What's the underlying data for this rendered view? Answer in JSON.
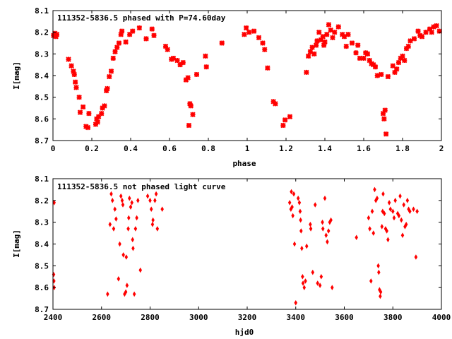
{
  "chart_data": [
    {
      "type": "scatter",
      "title": "111352-5836.5 phased with P=74.60day",
      "xlabel": "phase",
      "ylabel": "I[mag]",
      "xlim": [
        0,
        2
      ],
      "ylim": [
        8.7,
        8.1
      ],
      "y_inverted": true,
      "x_ticks": [
        "0",
        "0.2",
        "0.4",
        "0.6",
        "0.8",
        "1",
        "1.2",
        "1.4",
        "1.6",
        "1.8",
        "2"
      ],
      "y_ticks": [
        "8.1",
        "8.2",
        "8.3",
        "8.4",
        "8.5",
        "8.6",
        "8.7"
      ],
      "marker": "cross",
      "color": "#ff0000",
      "grid": false,
      "points": [
        [
          0.003,
          8.215
        ],
        [
          0.01,
          8.205
        ],
        [
          0.015,
          8.22
        ],
        [
          0.02,
          8.21
        ],
        [
          0.08,
          8.325
        ],
        [
          0.095,
          8.355
        ],
        [
          0.105,
          8.38
        ],
        [
          0.11,
          8.395
        ],
        [
          0.115,
          8.43
        ],
        [
          0.12,
          8.455
        ],
        [
          0.135,
          8.5
        ],
        [
          0.14,
          8.57
        ],
        [
          0.155,
          8.545
        ],
        [
          0.17,
          8.635
        ],
        [
          0.18,
          8.64
        ],
        [
          0.185,
          8.575
        ],
        [
          0.22,
          8.625
        ],
        [
          0.225,
          8.6
        ],
        [
          0.23,
          8.615
        ],
        [
          0.235,
          8.59
        ],
        [
          0.25,
          8.575
        ],
        [
          0.255,
          8.55
        ],
        [
          0.265,
          8.54
        ],
        [
          0.275,
          8.47
        ],
        [
          0.28,
          8.46
        ],
        [
          0.29,
          8.405
        ],
        [
          0.3,
          8.38
        ],
        [
          0.31,
          8.32
        ],
        [
          0.32,
          8.29
        ],
        [
          0.33,
          8.27
        ],
        [
          0.34,
          8.25
        ],
        [
          0.35,
          8.21
        ],
        [
          0.355,
          8.195
        ],
        [
          0.375,
          8.245
        ],
        [
          0.395,
          8.21
        ],
        [
          0.41,
          8.195
        ],
        [
          0.445,
          8.18
        ],
        [
          0.48,
          8.23
        ],
        [
          0.51,
          8.185
        ],
        [
          0.52,
          8.215
        ],
        [
          0.58,
          8.265
        ],
        [
          0.59,
          8.28
        ],
        [
          0.61,
          8.325
        ],
        [
          0.62,
          8.32
        ],
        [
          0.64,
          8.33
        ],
        [
          0.655,
          8.35
        ],
        [
          0.67,
          8.34
        ],
        [
          0.685,
          8.42
        ],
        [
          0.695,
          8.41
        ],
        [
          0.7,
          8.63
        ],
        [
          0.705,
          8.53
        ],
        [
          0.71,
          8.54
        ],
        [
          0.72,
          8.58
        ],
        [
          0.74,
          8.395
        ],
        [
          0.785,
          8.31
        ],
        [
          0.79,
          8.36
        ],
        [
          0.87,
          8.25
        ],
        [
          0.985,
          8.21
        ],
        [
          0.995,
          8.18
        ],
        [
          1.01,
          8.2
        ],
        [
          1.035,
          8.195
        ],
        [
          1.06,
          8.225
        ],
        [
          1.08,
          8.25
        ],
        [
          1.09,
          8.28
        ],
        [
          1.105,
          8.365
        ],
        [
          1.135,
          8.52
        ],
        [
          1.145,
          8.53
        ],
        [
          1.185,
          8.63
        ],
        [
          1.195,
          8.605
        ],
        [
          1.22,
          8.59
        ],
        [
          1.305,
          8.385
        ],
        [
          1.315,
          8.31
        ],
        [
          1.325,
          8.29
        ],
        [
          1.335,
          8.27
        ],
        [
          1.345,
          8.3
        ],
        [
          1.355,
          8.26
        ],
        [
          1.36,
          8.24
        ],
        [
          1.37,
          8.2
        ],
        [
          1.38,
          8.235
        ],
        [
          1.39,
          8.22
        ],
        [
          1.395,
          8.26
        ],
        [
          1.4,
          8.245
        ],
        [
          1.41,
          8.21
        ],
        [
          1.42,
          8.165
        ],
        [
          1.43,
          8.19
        ],
        [
          1.44,
          8.225
        ],
        [
          1.45,
          8.2
        ],
        [
          1.47,
          8.175
        ],
        [
          1.49,
          8.21
        ],
        [
          1.5,
          8.22
        ],
        [
          1.51,
          8.265
        ],
        [
          1.52,
          8.21
        ],
        [
          1.54,
          8.25
        ],
        [
          1.56,
          8.295
        ],
        [
          1.57,
          8.26
        ],
        [
          1.58,
          8.32
        ],
        [
          1.6,
          8.32
        ],
        [
          1.61,
          8.295
        ],
        [
          1.62,
          8.3
        ],
        [
          1.63,
          8.33
        ],
        [
          1.64,
          8.345
        ],
        [
          1.65,
          8.35
        ],
        [
          1.66,
          8.36
        ],
        [
          1.67,
          8.4
        ],
        [
          1.69,
          8.395
        ],
        [
          1.7,
          8.575
        ],
        [
          1.705,
          8.6
        ],
        [
          1.71,
          8.56
        ],
        [
          1.715,
          8.67
        ],
        [
          1.725,
          8.405
        ],
        [
          1.75,
          8.355
        ],
        [
          1.76,
          8.385
        ],
        [
          1.77,
          8.37
        ],
        [
          1.78,
          8.34
        ],
        [
          1.79,
          8.32
        ],
        [
          1.8,
          8.31
        ],
        [
          1.81,
          8.33
        ],
        [
          1.82,
          8.275
        ],
        [
          1.83,
          8.265
        ],
        [
          1.84,
          8.24
        ],
        [
          1.86,
          8.23
        ],
        [
          1.88,
          8.195
        ],
        [
          1.89,
          8.215
        ],
        [
          1.9,
          8.22
        ],
        [
          1.92,
          8.2
        ],
        [
          1.94,
          8.185
        ],
        [
          1.95,
          8.2
        ],
        [
          1.96,
          8.175
        ],
        [
          1.975,
          8.17
        ],
        [
          1.99,
          8.195
        ]
      ]
    },
    {
      "type": "scatter",
      "title": "111352-5836.5 not phased light curve",
      "xlabel": "hjd0",
      "ylabel": "I[mag]",
      "xlim": [
        2400,
        4000
      ],
      "ylim": [
        8.7,
        8.1
      ],
      "y_inverted": true,
      "x_ticks": [
        "2400",
        "2600",
        "2800",
        "3000",
        "3200",
        "3400",
        "3600",
        "3800",
        "4000"
      ],
      "y_ticks": [
        "8.1",
        "8.2",
        "8.3",
        "8.4",
        "8.5",
        "8.6",
        "8.7"
      ],
      "marker": "diamond",
      "color": "#ff0000",
      "grid": false,
      "points": [
        [
          2405,
          8.21
        ],
        [
          2403,
          8.54
        ],
        [
          2404,
          8.57
        ],
        [
          2405,
          8.6
        ],
        [
          2625,
          8.63
        ],
        [
          2635,
          8.31
        ],
        [
          2640,
          8.17
        ],
        [
          2645,
          8.2
        ],
        [
          2650,
          8.33
        ],
        [
          2655,
          8.24
        ],
        [
          2660,
          8.285
        ],
        [
          2670,
          8.56
        ],
        [
          2675,
          8.4
        ],
        [
          2680,
          8.18
        ],
        [
          2685,
          8.2
        ],
        [
          2688,
          8.22
        ],
        [
          2690,
          8.45
        ],
        [
          2695,
          8.63
        ],
        [
          2700,
          8.62
        ],
        [
          2702,
          8.46
        ],
        [
          2705,
          8.59
        ],
        [
          2710,
          8.33
        ],
        [
          2712,
          8.28
        ],
        [
          2715,
          8.19
        ],
        [
          2720,
          8.23
        ],
        [
          2725,
          8.21
        ],
        [
          2728,
          8.38
        ],
        [
          2730,
          8.42
        ],
        [
          2735,
          8.63
        ],
        [
          2740,
          8.33
        ],
        [
          2745,
          8.28
        ],
        [
          2750,
          8.2
        ],
        [
          2760,
          8.52
        ],
        [
          2790,
          8.18
        ],
        [
          2800,
          8.2
        ],
        [
          2805,
          8.24
        ],
        [
          2810,
          8.31
        ],
        [
          2812,
          8.29
        ],
        [
          2820,
          8.2
        ],
        [
          2825,
          8.17
        ],
        [
          2830,
          8.33
        ],
        [
          2850,
          8.24
        ],
        [
          3375,
          8.21
        ],
        [
          3380,
          8.24
        ],
        [
          3382,
          8.16
        ],
        [
          3385,
          8.23
        ],
        [
          3388,
          8.27
        ],
        [
          3392,
          8.17
        ],
        [
          3395,
          8.4
        ],
        [
          3400,
          8.67
        ],
        [
          3410,
          8.19
        ],
        [
          3415,
          8.21
        ],
        [
          3418,
          8.25
        ],
        [
          3420,
          8.29
        ],
        [
          3422,
          8.34
        ],
        [
          3425,
          8.42
        ],
        [
          3428,
          8.55
        ],
        [
          3430,
          8.58
        ],
        [
          3435,
          8.6
        ],
        [
          3440,
          8.57
        ],
        [
          3445,
          8.41
        ],
        [
          3460,
          8.31
        ],
        [
          3462,
          8.33
        ],
        [
          3470,
          8.53
        ],
        [
          3480,
          8.22
        ],
        [
          3490,
          8.58
        ],
        [
          3500,
          8.59
        ],
        [
          3505,
          8.55
        ],
        [
          3510,
          8.3
        ],
        [
          3512,
          8.33
        ],
        [
          3520,
          8.19
        ],
        [
          3525,
          8.36
        ],
        [
          3530,
          8.39
        ],
        [
          3535,
          8.34
        ],
        [
          3540,
          8.3
        ],
        [
          3545,
          8.29
        ],
        [
          3550,
          8.6
        ],
        [
          3650,
          8.37
        ],
        [
          3700,
          8.28
        ],
        [
          3705,
          8.33
        ],
        [
          3710,
          8.57
        ],
        [
          3715,
          8.25
        ],
        [
          3720,
          8.35
        ],
        [
          3725,
          8.15
        ],
        [
          3730,
          8.2
        ],
        [
          3735,
          8.19
        ],
        [
          3740,
          8.5
        ],
        [
          3742,
          8.53
        ],
        [
          3745,
          8.61
        ],
        [
          3748,
          8.64
        ],
        [
          3750,
          8.62
        ],
        [
          3755,
          8.32
        ],
        [
          3758,
          8.25
        ],
        [
          3760,
          8.17
        ],
        [
          3765,
          8.26
        ],
        [
          3770,
          8.33
        ],
        [
          3775,
          8.34
        ],
        [
          3780,
          8.38
        ],
        [
          3785,
          8.21
        ],
        [
          3790,
          8.24
        ],
        [
          3800,
          8.25
        ],
        [
          3805,
          8.28
        ],
        [
          3810,
          8.2
        ],
        [
          3820,
          8.26
        ],
        [
          3825,
          8.27
        ],
        [
          3830,
          8.18
        ],
        [
          3835,
          8.29
        ],
        [
          3840,
          8.36
        ],
        [
          3845,
          8.22
        ],
        [
          3850,
          8.32
        ],
        [
          3855,
          8.31
        ],
        [
          3860,
          8.2
        ],
        [
          3865,
          8.24
        ],
        [
          3870,
          8.25
        ],
        [
          3885,
          8.24
        ],
        [
          3895,
          8.46
        ],
        [
          3900,
          8.25
        ]
      ]
    }
  ]
}
